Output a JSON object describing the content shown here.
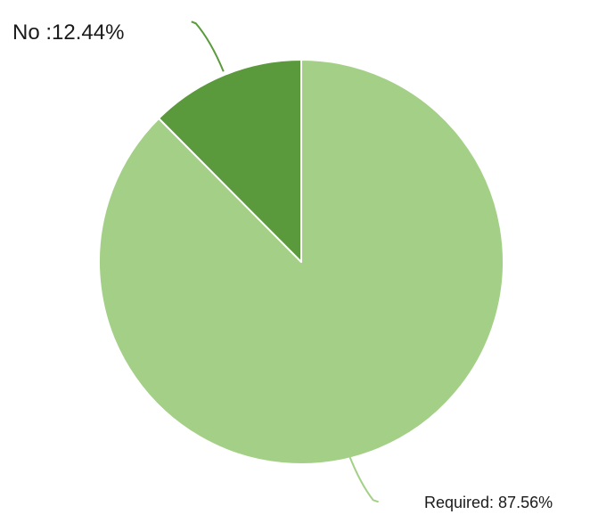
{
  "chart_data": {
    "type": "pie",
    "title": "",
    "slices": [
      {
        "name": "No",
        "value": 12.44,
        "label": "No :12.44%",
        "color": "#5b9a3c"
      },
      {
        "name": "Required",
        "value": 87.56,
        "label": "Required: 87.56%",
        "color": "#a3d086"
      }
    ],
    "legend": false,
    "separator_color": "#ffffff"
  }
}
